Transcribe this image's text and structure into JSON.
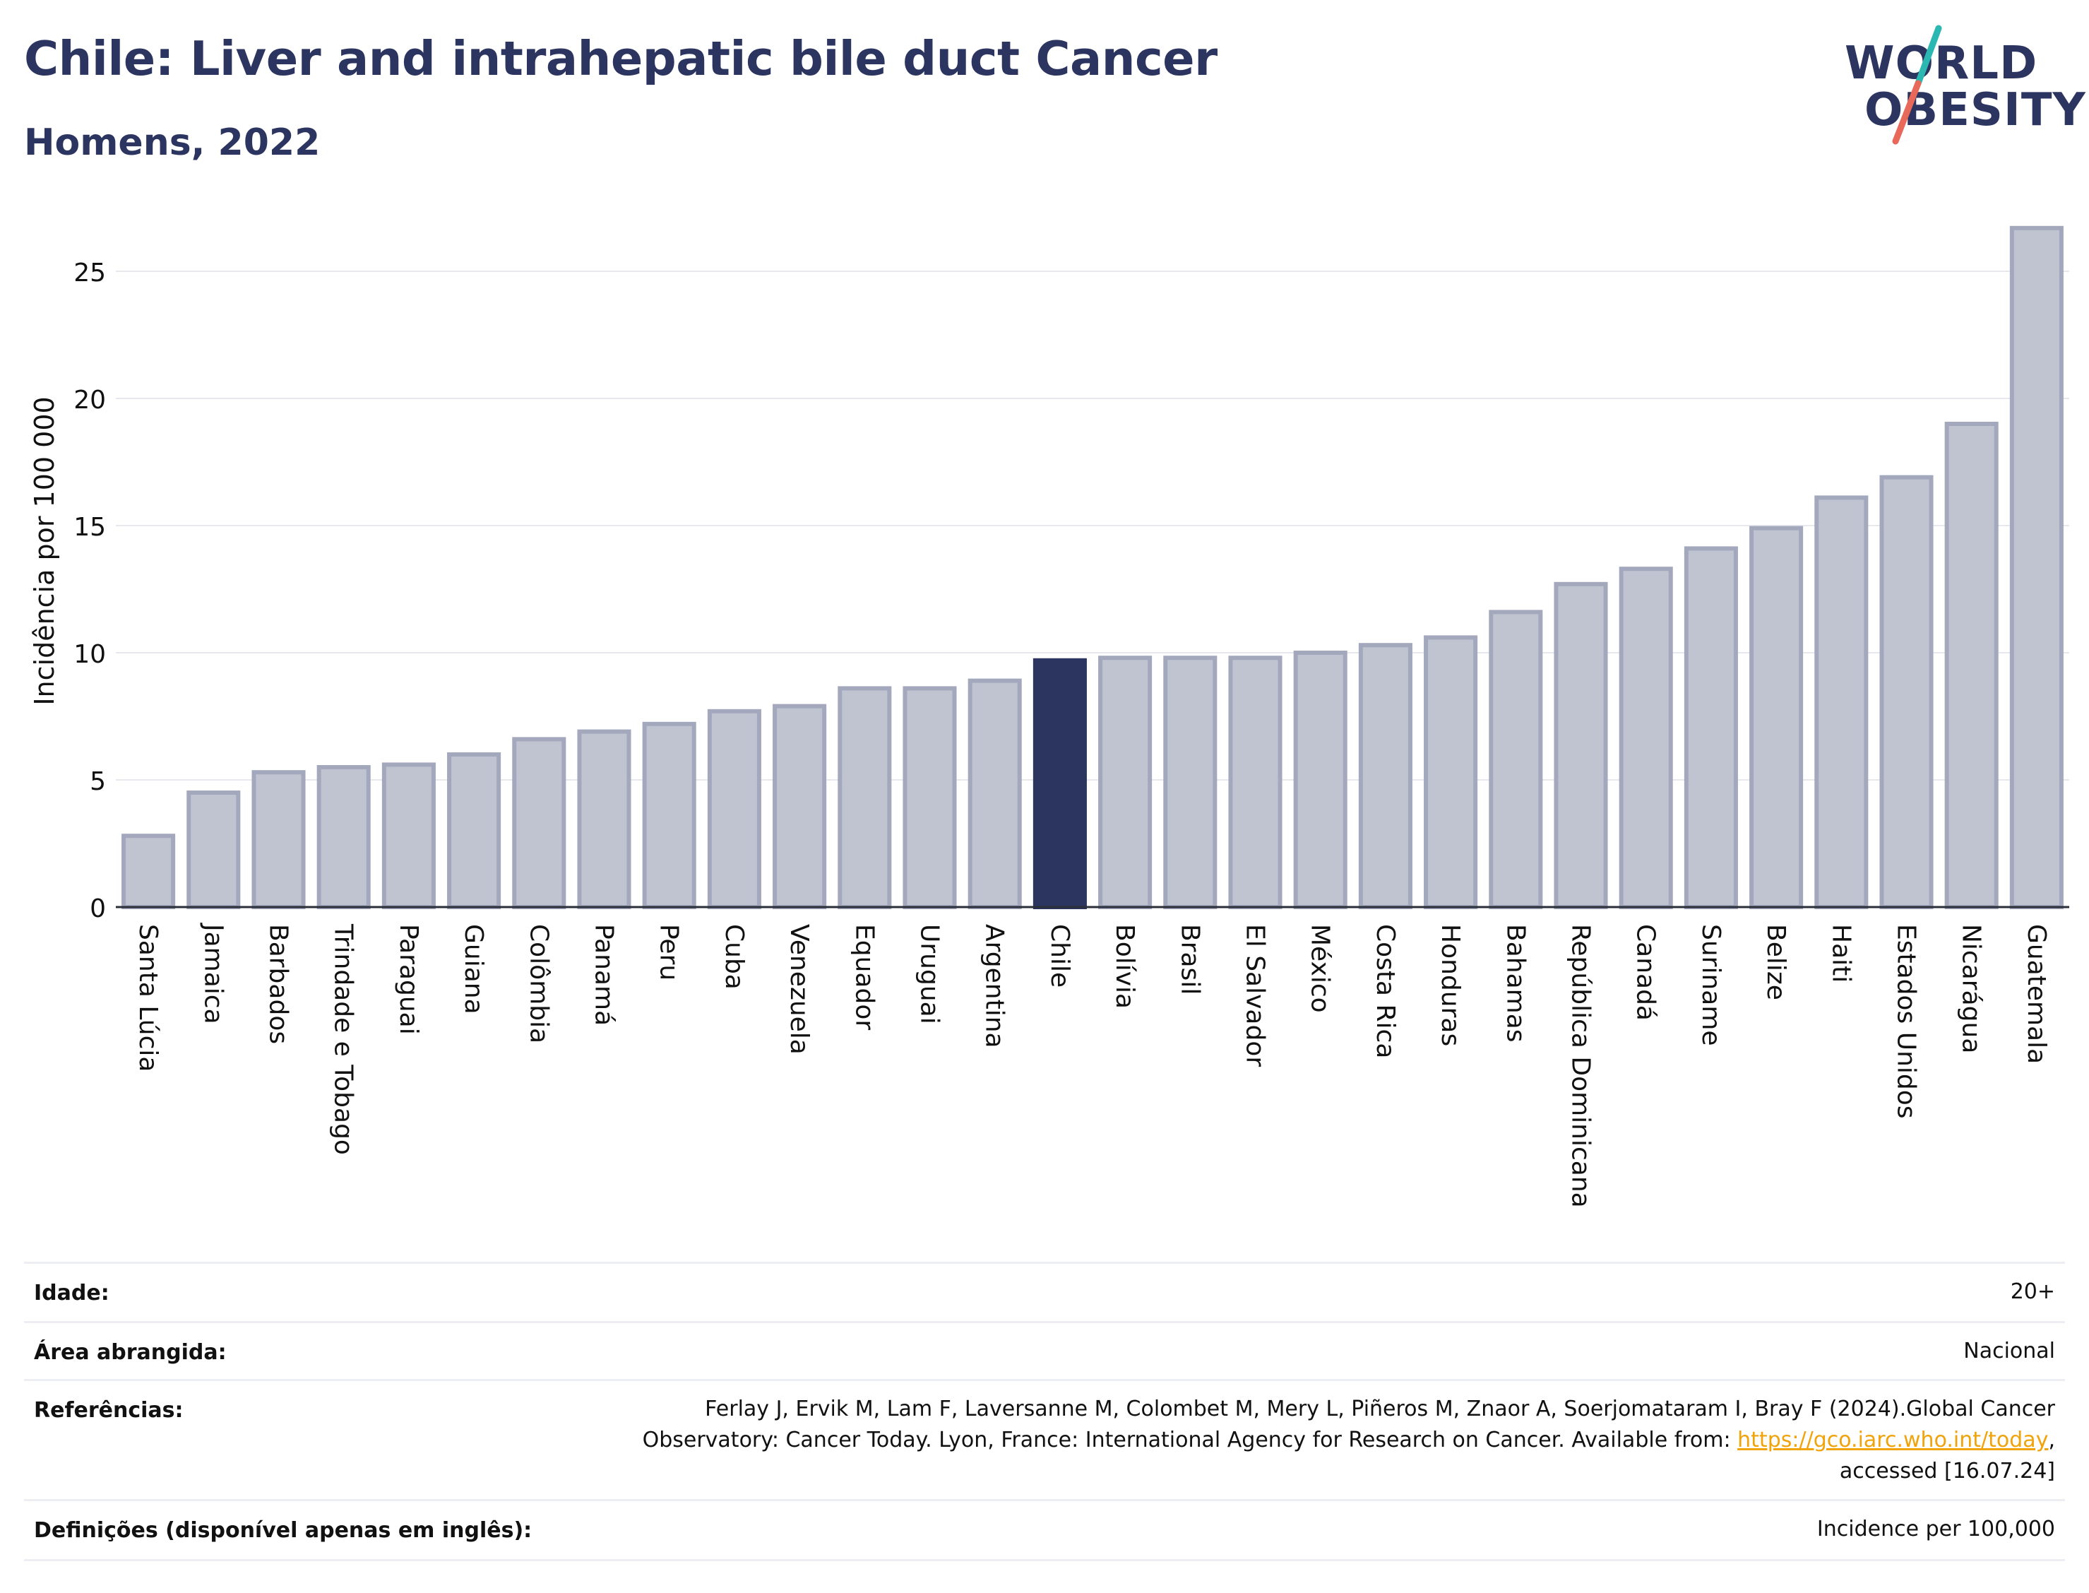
{
  "header": {
    "title": "Chile: Liver and intrahepatic bile duct Cancer",
    "subtitle": "Homens, 2022"
  },
  "logo": {
    "line1": "WORLD",
    "line2": "OBESITY",
    "text_color": "#2b3560",
    "slash_colors": [
      "#2bb8b3",
      "#e8685a"
    ]
  },
  "chart_data": {
    "type": "bar",
    "title": "",
    "xlabel": "",
    "ylabel": "Incidência por 100 000",
    "ylim": [
      0,
      27.5
    ],
    "yticks": [
      0,
      5,
      10,
      15,
      20,
      25
    ],
    "grid": true,
    "highlight": "Chile",
    "colors": {
      "bar": "#c0c3d0",
      "bar_edge": "#a3a8bd",
      "highlight": "#2b3560"
    },
    "categories": [
      "Santa Lúcia",
      "Jamaica",
      "Barbados",
      "Trindade e Tobago",
      "Paraguai",
      "Guiana",
      "Colômbia",
      "Panamá",
      "Peru",
      "Cuba",
      "Venezuela",
      "Equador",
      "Uruguai",
      "Argentina",
      "Chile",
      "Bolívia",
      "Brasil",
      "El Salvador",
      "México",
      "Costa Rica",
      "Honduras",
      "Bahamas",
      "República Dominicana",
      "Canadá",
      "Suriname",
      "Belize",
      "Haiti",
      "Estados Unidos",
      "Nicarágua",
      "Guatemala"
    ],
    "values": [
      2.8,
      4.5,
      5.3,
      5.5,
      5.6,
      6.0,
      6.6,
      6.9,
      7.2,
      7.7,
      7.9,
      8.6,
      8.6,
      8.9,
      9.7,
      9.8,
      9.8,
      9.8,
      10.0,
      10.3,
      10.6,
      11.6,
      12.7,
      13.3,
      14.1,
      14.9,
      16.1,
      16.9,
      19.0,
      26.7
    ]
  },
  "info": {
    "rows": [
      {
        "label": "Idade:",
        "value": "20+"
      },
      {
        "label": "Área abrangida:",
        "value": "Nacional"
      },
      {
        "label": "Referências:",
        "value_line1": "Ferlay J, Ervik M, Lam F, Laversanne M, Colombet M, Mery L, Piñeros M, Znaor A, Soerjomataram I, Bray F (2024).Global Cancer",
        "value_line2_prefix": "Observatory: Cancer Today. Lyon, France: International Agency for Research on Cancer. Available from: ",
        "link": "https://gco.iarc.who.int/today",
        "value_line2_suffix": ",",
        "value_line3": "accessed [16.07.24]"
      },
      {
        "label": "Definições (disponível apenas em inglês):",
        "value": "Incidence per 100,000"
      }
    ]
  }
}
